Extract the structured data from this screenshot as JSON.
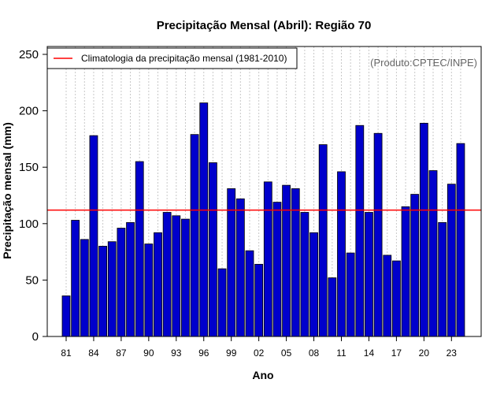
{
  "chart_data": {
    "type": "bar",
    "title": "Precipitação Mensal (Abril): Região 70",
    "xlabel": "Ano",
    "ylabel": "Precipitação mensal (mm)",
    "credit": "(Produto:CPTEC/INPE)",
    "ylim": [
      0,
      250
    ],
    "yticks": [
      0,
      50,
      100,
      150,
      200,
      250
    ],
    "years": [
      1981,
      1982,
      1983,
      1984,
      1985,
      1986,
      1987,
      1988,
      1989,
      1990,
      1991,
      1992,
      1993,
      1994,
      1995,
      1996,
      1997,
      1998,
      1999,
      2000,
      2001,
      2002,
      2003,
      2004,
      2005,
      2006,
      2007,
      2008,
      2009,
      2010,
      2011,
      2012,
      2013,
      2014,
      2015,
      2016,
      2017,
      2018,
      2019,
      2020,
      2021,
      2022,
      2023,
      2024
    ],
    "values": [
      36,
      103,
      86,
      178,
      80,
      84,
      96,
      101,
      155,
      82,
      92,
      110,
      107,
      104,
      179,
      207,
      154,
      60,
      131,
      122,
      76,
      64,
      137,
      119,
      134,
      131,
      110,
      92,
      170,
      52,
      146,
      74,
      187,
      110,
      180,
      72,
      67,
      115,
      126,
      189,
      147,
      101,
      135,
      171
    ],
    "xtick_labels": [
      "81",
      "84",
      "87",
      "90",
      "93",
      "96",
      "99",
      "02",
      "05",
      "08",
      "11",
      "14",
      "17",
      "20",
      "23"
    ],
    "xtick_years": [
      1981,
      1984,
      1987,
      1990,
      1993,
      1996,
      1999,
      2002,
      2005,
      2008,
      2011,
      2014,
      2017,
      2020,
      2023
    ],
    "climatology": {
      "label": "Climatologia da precipitação mensal (1981-2010)",
      "value": 112,
      "color": "#ff0000"
    },
    "bar_color": "#0000cc",
    "grid": "vertical-dotted"
  }
}
